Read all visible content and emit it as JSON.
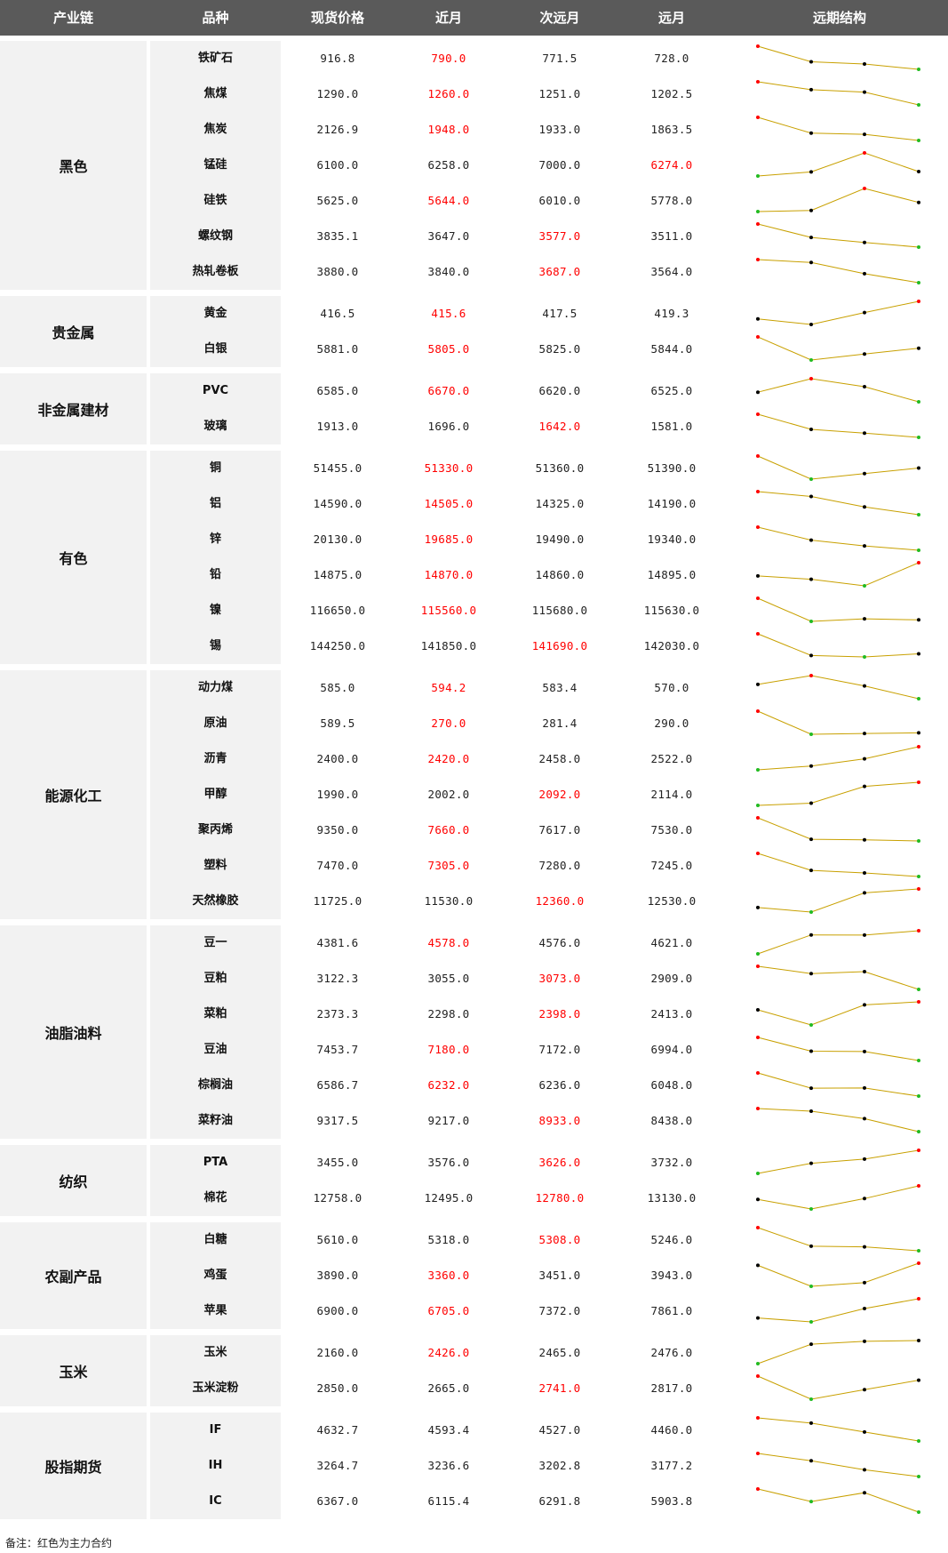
{
  "headers": [
    "产业链",
    "品种",
    "现货价格",
    "近月",
    "次远月",
    "远月",
    "远期结构"
  ],
  "groups": [
    {
      "name": "黑色",
      "items": [
        {
          "name": "铁矿石",
          "values": [
            "916.8",
            "790.0",
            "771.5",
            "728.0"
          ],
          "main": 1,
          "dots": [
            "red",
            "black",
            "black",
            "green"
          ]
        },
        {
          "name": "焦煤",
          "values": [
            "1290.0",
            "1260.0",
            "1251.0",
            "1202.5"
          ],
          "main": 1,
          "dots": [
            "red",
            "black",
            "black",
            "green"
          ]
        },
        {
          "name": "焦炭",
          "values": [
            "2126.9",
            "1948.0",
            "1933.0",
            "1863.5"
          ],
          "main": 1,
          "dots": [
            "red",
            "black",
            "black",
            "green"
          ]
        },
        {
          "name": "锰硅",
          "values": [
            "6100.0",
            "6258.0",
            "7000.0",
            "6274.0"
          ],
          "main": 3,
          "dots": [
            "green",
            "black",
            "red",
            "black"
          ]
        },
        {
          "name": "硅铁",
          "values": [
            "5625.0",
            "5644.0",
            "6010.0",
            "5778.0"
          ],
          "main": 1,
          "dots": [
            "green",
            "black",
            "red",
            "black"
          ]
        },
        {
          "name": "螺纹钢",
          "values": [
            "3835.1",
            "3647.0",
            "3577.0",
            "3511.0"
          ],
          "main": 2,
          "dots": [
            "red",
            "black",
            "black",
            "green"
          ]
        },
        {
          "name": "热轧卷板",
          "values": [
            "3880.0",
            "3840.0",
            "3687.0",
            "3564.0"
          ],
          "main": 2,
          "dots": [
            "red",
            "black",
            "black",
            "green"
          ]
        }
      ]
    },
    {
      "name": "贵金属",
      "items": [
        {
          "name": "黄金",
          "values": [
            "416.5",
            "415.6",
            "417.5",
            "419.3"
          ],
          "main": 1,
          "dots": [
            "black",
            "black",
            "black",
            "red"
          ]
        },
        {
          "name": "白银",
          "values": [
            "5881.0",
            "5805.0",
            "5825.0",
            "5844.0"
          ],
          "main": 1,
          "dots": [
            "red",
            "green",
            "black",
            "black"
          ]
        }
      ]
    },
    {
      "name": "非金属建材",
      "items": [
        {
          "name": "PVC",
          "values": [
            "6585.0",
            "6670.0",
            "6620.0",
            "6525.0"
          ],
          "main": 1,
          "dots": [
            "black",
            "red",
            "black",
            "green"
          ]
        },
        {
          "name": "玻璃",
          "values": [
            "1913.0",
            "1696.0",
            "1642.0",
            "1581.0"
          ],
          "main": 2,
          "dots": [
            "red",
            "black",
            "black",
            "green"
          ]
        }
      ]
    },
    {
      "name": "有色",
      "items": [
        {
          "name": "铜",
          "values": [
            "51455.0",
            "51330.0",
            "51360.0",
            "51390.0"
          ],
          "main": 1,
          "dots": [
            "red",
            "green",
            "black",
            "black"
          ]
        },
        {
          "name": "铝",
          "values": [
            "14590.0",
            "14505.0",
            "14325.0",
            "14190.0"
          ],
          "main": 1,
          "dots": [
            "red",
            "black",
            "black",
            "green"
          ]
        },
        {
          "name": "锌",
          "values": [
            "20130.0",
            "19685.0",
            "19490.0",
            "19340.0"
          ],
          "main": 1,
          "dots": [
            "red",
            "black",
            "black",
            "green"
          ]
        },
        {
          "name": "铅",
          "values": [
            "14875.0",
            "14870.0",
            "14860.0",
            "14895.0"
          ],
          "main": 1,
          "dots": [
            "black",
            "black",
            "green",
            "red"
          ]
        },
        {
          "name": "镍",
          "values": [
            "116650.0",
            "115560.0",
            "115680.0",
            "115630.0"
          ],
          "main": 1,
          "dots": [
            "red",
            "green",
            "black",
            "black"
          ]
        },
        {
          "name": "锡",
          "values": [
            "144250.0",
            "141850.0",
            "141690.0",
            "142030.0"
          ],
          "main": 2,
          "dots": [
            "red",
            "black",
            "green",
            "black"
          ]
        }
      ]
    },
    {
      "name": "能源化工",
      "items": [
        {
          "name": "动力煤",
          "values": [
            "585.0",
            "594.2",
            "583.4",
            "570.0"
          ],
          "main": 1,
          "dots": [
            "black",
            "red",
            "black",
            "green"
          ]
        },
        {
          "name": "原油",
          "values": [
            "589.5",
            "270.0",
            "281.4",
            "290.0"
          ],
          "main": 1,
          "dots": [
            "red",
            "green",
            "black",
            "black"
          ]
        },
        {
          "name": "沥青",
          "values": [
            "2400.0",
            "2420.0",
            "2458.0",
            "2522.0"
          ],
          "main": 1,
          "dots": [
            "green",
            "black",
            "black",
            "red"
          ]
        },
        {
          "name": "甲醇",
          "values": [
            "1990.0",
            "2002.0",
            "2092.0",
            "2114.0"
          ],
          "main": 2,
          "dots": [
            "green",
            "black",
            "black",
            "red"
          ]
        },
        {
          "name": "聚丙烯",
          "values": [
            "9350.0",
            "7660.0",
            "7617.0",
            "7530.0"
          ],
          "main": 1,
          "dots": [
            "red",
            "black",
            "black",
            "green"
          ]
        },
        {
          "name": "塑料",
          "values": [
            "7470.0",
            "7305.0",
            "7280.0",
            "7245.0"
          ],
          "main": 1,
          "dots": [
            "red",
            "black",
            "black",
            "green"
          ]
        },
        {
          "name": "天然橡胶",
          "values": [
            "11725.0",
            "11530.0",
            "12360.0",
            "12530.0"
          ],
          "main": 2,
          "dots": [
            "black",
            "green",
            "black",
            "red"
          ]
        }
      ]
    },
    {
      "name": "油脂油料",
      "items": [
        {
          "name": "豆一",
          "values": [
            "4381.6",
            "4578.0",
            "4576.0",
            "4621.0"
          ],
          "main": 1,
          "dots": [
            "green",
            "black",
            "black",
            "red"
          ]
        },
        {
          "name": "豆粕",
          "values": [
            "3122.3",
            "3055.0",
            "3073.0",
            "2909.0"
          ],
          "main": 2,
          "dots": [
            "red",
            "black",
            "black",
            "green"
          ]
        },
        {
          "name": "菜粕",
          "values": [
            "2373.3",
            "2298.0",
            "2398.0",
            "2413.0"
          ],
          "main": 2,
          "dots": [
            "black",
            "green",
            "black",
            "red"
          ]
        },
        {
          "name": "豆油",
          "values": [
            "7453.7",
            "7180.0",
            "7172.0",
            "6994.0"
          ],
          "main": 1,
          "dots": [
            "red",
            "black",
            "black",
            "green"
          ]
        },
        {
          "name": "棕榈油",
          "values": [
            "6586.7",
            "6232.0",
            "6236.0",
            "6048.0"
          ],
          "main": 1,
          "dots": [
            "red",
            "black",
            "black",
            "green"
          ]
        },
        {
          "name": "菜籽油",
          "values": [
            "9317.5",
            "9217.0",
            "8933.0",
            "8438.0"
          ],
          "main": 2,
          "dots": [
            "red",
            "black",
            "black",
            "green"
          ]
        }
      ]
    },
    {
      "name": "纺织",
      "items": [
        {
          "name": "PTA",
          "values": [
            "3455.0",
            "3576.0",
            "3626.0",
            "3732.0"
          ],
          "main": 2,
          "dots": [
            "green",
            "black",
            "black",
            "red"
          ]
        },
        {
          "name": "棉花",
          "values": [
            "12758.0",
            "12495.0",
            "12780.0",
            "13130.0"
          ],
          "main": 2,
          "dots": [
            "black",
            "green",
            "black",
            "red"
          ]
        }
      ]
    },
    {
      "name": "农副产品",
      "items": [
        {
          "name": "白糖",
          "values": [
            "5610.0",
            "5318.0",
            "5308.0",
            "5246.0"
          ],
          "main": 2,
          "dots": [
            "red",
            "black",
            "black",
            "green"
          ]
        },
        {
          "name": "鸡蛋",
          "values": [
            "3890.0",
            "3360.0",
            "3451.0",
            "3943.0"
          ],
          "main": 1,
          "dots": [
            "black",
            "green",
            "black",
            "red"
          ]
        },
        {
          "name": "苹果",
          "values": [
            "6900.0",
            "6705.0",
            "7372.0",
            "7861.0"
          ],
          "main": 1,
          "dots": [
            "black",
            "green",
            "black",
            "red"
          ]
        }
      ]
    },
    {
      "name": "玉米",
      "items": [
        {
          "name": "玉米",
          "values": [
            "2160.0",
            "2426.0",
            "2465.0",
            "2476.0"
          ],
          "main": 1,
          "dots": [
            "green",
            "black",
            "black",
            "black"
          ]
        },
        {
          "name": "玉米淀粉",
          "values": [
            "2850.0",
            "2665.0",
            "2741.0",
            "2817.0"
          ],
          "main": 2,
          "dots": [
            "red",
            "green",
            "black",
            "black"
          ]
        }
      ]
    },
    {
      "name": "股指期货",
      "items": [
        {
          "name": "IF",
          "values": [
            "4632.7",
            "4593.4",
            "4527.0",
            "4460.0"
          ],
          "main": 0,
          "dots": [
            "red",
            "black",
            "black",
            "green"
          ]
        },
        {
          "name": "IH",
          "values": [
            "3264.7",
            "3236.6",
            "3202.8",
            "3177.2"
          ],
          "main": 0,
          "dots": [
            "red",
            "black",
            "black",
            "green"
          ]
        },
        {
          "name": "IC",
          "values": [
            "6367.0",
            "6115.4",
            "6291.8",
            "5903.8"
          ],
          "main": 0,
          "dots": [
            "red",
            "green",
            "black",
            "green"
          ]
        }
      ]
    }
  ],
  "note": "备注：红色为主力合约",
  "colors": {
    "header_bg": "#5a5a5a",
    "cell_bg": "#f2f2f2",
    "main_contract": "#ff0000",
    "line": "#c8a000",
    "dot_red": "#ff0000",
    "dot_green": "#22bb22",
    "dot_black": "#000000"
  }
}
